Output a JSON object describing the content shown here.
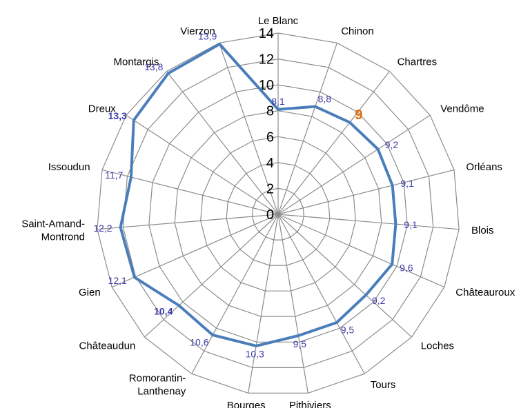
{
  "chart_data": {
    "type": "radar",
    "categories": [
      "Le Blanc",
      "Chinon",
      "Chartres",
      "Vendôme",
      "Orléans",
      "Blois",
      "Châteauroux",
      "Loches",
      "Tours",
      "Pithiviers",
      "Bourges",
      "Romorantin-Lanthenay",
      "Châteaudun",
      "Gien",
      "Saint-Amand-Montrond",
      "Issoudun",
      "Dreux",
      "Montargis",
      "Vierzon"
    ],
    "category_labels": [
      [
        "Le Blanc"
      ],
      [
        "Chinon"
      ],
      [
        "Chartres"
      ],
      [
        "Vendôme"
      ],
      [
        "Orléans"
      ],
      [
        "Blois"
      ],
      [
        "Châteauroux"
      ],
      [
        "Loches"
      ],
      [
        "Tours"
      ],
      [
        "Pithiviers"
      ],
      [
        "Bourges"
      ],
      [
        "Romorantin-",
        "Lanthenay"
      ],
      [
        "Châteaudun"
      ],
      [
        "Gien"
      ],
      [
        "Saint-Amand-",
        "Montrond"
      ],
      [
        "Issoudun"
      ],
      [
        "Dreux"
      ],
      [
        "Montargis"
      ],
      [
        "Vierzon"
      ]
    ],
    "values": [
      8.1,
      8.8,
      9,
      9.2,
      9.1,
      9.1,
      9.6,
      9.2,
      9.5,
      9.5,
      10.3,
      10.6,
      10.4,
      12.1,
      12.2,
      11.7,
      13.3,
      13.8,
      13.9
    ],
    "data_labels": [
      "8,1",
      "8,8",
      "9",
      "9,2",
      "9,1",
      "9,1",
      "9,6",
      "9,2",
      "9,5",
      "9,5",
      "10,3",
      "10,6",
      "10,4",
      "12,1",
      "12,2",
      "11,7",
      "13,3",
      "13,8",
      "13,9"
    ],
    "highlight": {
      "2": "orange-bold",
      "12": "bold",
      "16": "bold"
    },
    "rlim": [
      0,
      14
    ],
    "ticks": [
      0,
      2,
      4,
      6,
      8,
      10,
      12,
      14
    ],
    "grid": true,
    "colors": {
      "series": "#4a7ebb",
      "grid": "#8c8c8c",
      "label": "#3b3ba8",
      "highlight": "#e36c0a"
    }
  }
}
